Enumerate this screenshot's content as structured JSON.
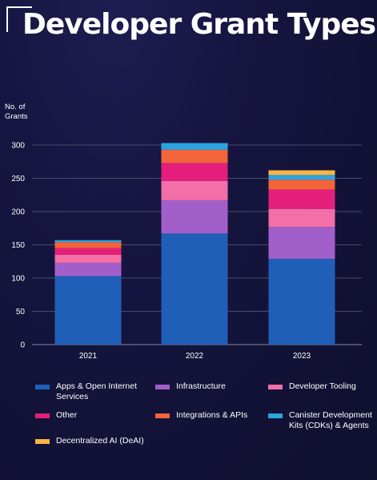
{
  "title": "Developer Grant Types",
  "chart_data": {
    "type": "bar",
    "stacked": true,
    "ylabel": "No. of\nGrants",
    "ylim": [
      0,
      330
    ],
    "yticks": [
      0,
      50,
      100,
      150,
      200,
      250,
      300
    ],
    "grid": true,
    "legend_position": "bottom",
    "categories": [
      "2021",
      "2022",
      "2023"
    ],
    "series": [
      {
        "name": "Apps & Open Internet Services",
        "color": "#1f5fb8",
        "values": [
          103,
          167,
          129
        ]
      },
      {
        "name": "Infrastructure",
        "color": "#a35fc9",
        "values": [
          20,
          50,
          48
        ]
      },
      {
        "name": "Developer Tooling",
        "color": "#f36fa8",
        "values": [
          12,
          29,
          27
        ]
      },
      {
        "name": "Other",
        "color": "#e41f7b",
        "values": [
          10,
          27,
          29
        ]
      },
      {
        "name": "Integrations & APIs",
        "color": "#f2643a",
        "values": [
          9,
          20,
          15
        ]
      },
      {
        "name": "Canister Development Kits (CDKs) & Agents",
        "color": "#2ba4e0",
        "values": [
          3,
          10,
          7
        ]
      },
      {
        "name": "Decentralized AI (DeAI)",
        "color": "#f7b547",
        "values": [
          0,
          0,
          7
        ]
      }
    ]
  }
}
